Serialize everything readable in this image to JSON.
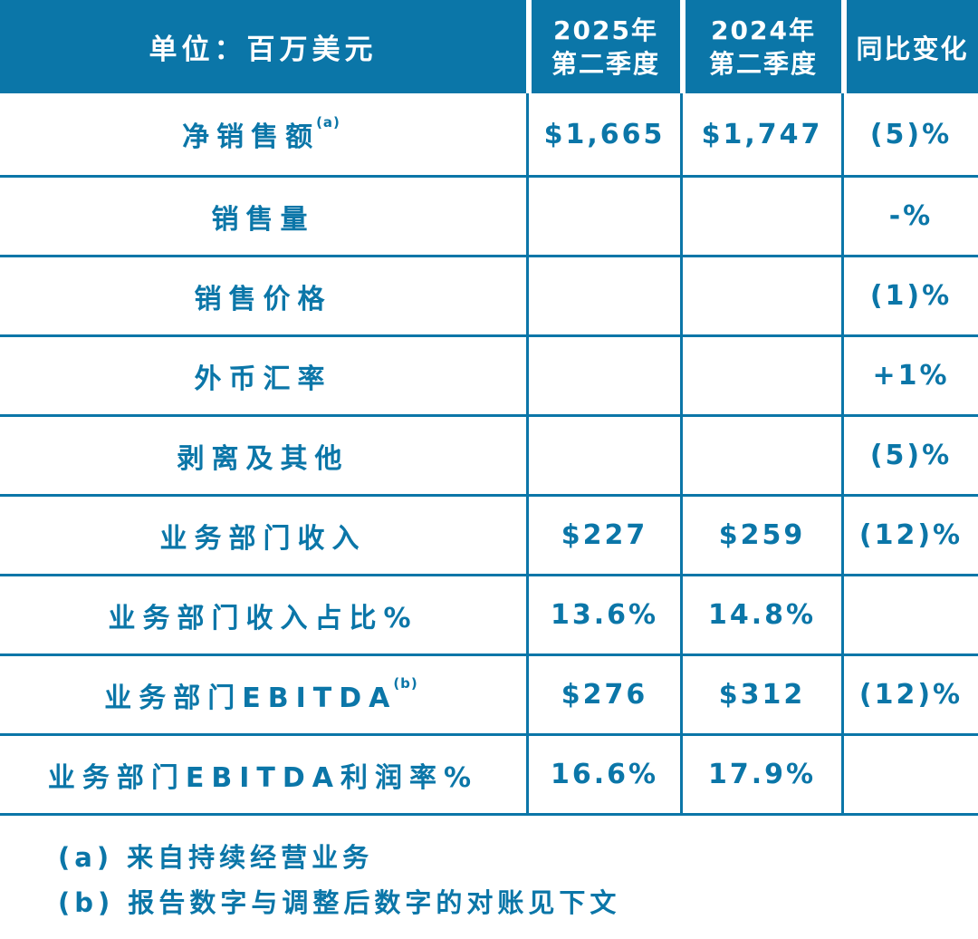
{
  "colors": {
    "accent": "#0b76a8",
    "header_text": "#ffffff",
    "background": "#ffffff"
  },
  "table": {
    "header": {
      "unit": "单位：百万美元",
      "q2_2025": {
        "line1": "2025年",
        "line2": "第二季度"
      },
      "q2_2024": {
        "line1": "2024年",
        "line2": "第二季度"
      },
      "yoy": "同比变化"
    },
    "rows": [
      {
        "label": "净销售额",
        "sup": "(a)",
        "v2025": "$1,665",
        "v2024": "$1,747",
        "yoy": "(5)%"
      },
      {
        "label": "销售量",
        "sup": "",
        "v2025": "",
        "v2024": "",
        "yoy": "-%"
      },
      {
        "label": "销售价格",
        "sup": "",
        "v2025": "",
        "v2024": "",
        "yoy": "(1)%"
      },
      {
        "label": "外币汇率",
        "sup": "",
        "v2025": "",
        "v2024": "",
        "yoy": "+1%"
      },
      {
        "label": "剥离及其他",
        "sup": "",
        "v2025": "",
        "v2024": "",
        "yoy": "(5)%"
      },
      {
        "label": "业务部门收入",
        "sup": "",
        "v2025": "$227",
        "v2024": "$259",
        "yoy": "(12)%"
      },
      {
        "label": "业务部门收入占比%",
        "sup": "",
        "v2025": "13.6%",
        "v2024": "14.8%",
        "yoy": ""
      },
      {
        "label": "业务部门EBITDA",
        "sup": "(b)",
        "v2025": "$276",
        "v2024": "$312",
        "yoy": "(12)%"
      },
      {
        "label": "业务部门EBITDA利润率%",
        "sup": "",
        "v2025": "16.6%",
        "v2024": "17.9%",
        "yoy": ""
      }
    ],
    "footnotes": [
      "(a) 来自持续经营业务",
      "(b) 报告数字与调整后数字的对账见下文"
    ]
  }
}
